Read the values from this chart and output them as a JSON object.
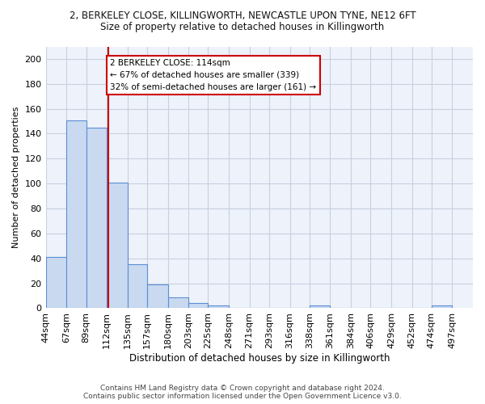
{
  "title_line1": "2, BERKELEY CLOSE, KILLINGWORTH, NEWCASTLE UPON TYNE, NE12 6FT",
  "title_line2": "Size of property relative to detached houses in Killingworth",
  "xlabel": "Distribution of detached houses by size in Killingworth",
  "ylabel": "Number of detached properties",
  "bin_labels": [
    "44sqm",
    "67sqm",
    "89sqm",
    "112sqm",
    "135sqm",
    "157sqm",
    "180sqm",
    "203sqm",
    "225sqm",
    "248sqm",
    "271sqm",
    "293sqm",
    "316sqm",
    "338sqm",
    "361sqm",
    "384sqm",
    "406sqm",
    "429sqm",
    "452sqm",
    "474sqm",
    "497sqm"
  ],
  "bin_edges": [
    44,
    67,
    89,
    112,
    135,
    157,
    180,
    203,
    225,
    248,
    271,
    293,
    316,
    338,
    361,
    384,
    406,
    429,
    452,
    474,
    497
  ],
  "bar_heights": [
    41,
    151,
    145,
    101,
    35,
    19,
    9,
    4,
    2,
    0,
    0,
    0,
    0,
    2,
    0,
    0,
    0,
    0,
    0,
    2
  ],
  "bar_color": "#c9d9f0",
  "bar_edge_color": "#5b8fd4",
  "ref_line_x": 114,
  "ref_line_color": "#cc0000",
  "annotation_text": "2 BERKELEY CLOSE: 114sqm\n← 67% of detached houses are smaller (339)\n32% of semi-detached houses are larger (161) →",
  "annotation_box_color": "#ffffff",
  "annotation_box_edge": "#cc0000",
  "ylim": [
    0,
    210
  ],
  "yticks": [
    0,
    20,
    40,
    60,
    80,
    100,
    120,
    140,
    160,
    180,
    200
  ],
  "grid_color": "#c8d0e0",
  "background_color": "#eef2fa",
  "footer": "Contains HM Land Registry data © Crown copyright and database right 2024.\nContains public sector information licensed under the Open Government Licence v3.0."
}
